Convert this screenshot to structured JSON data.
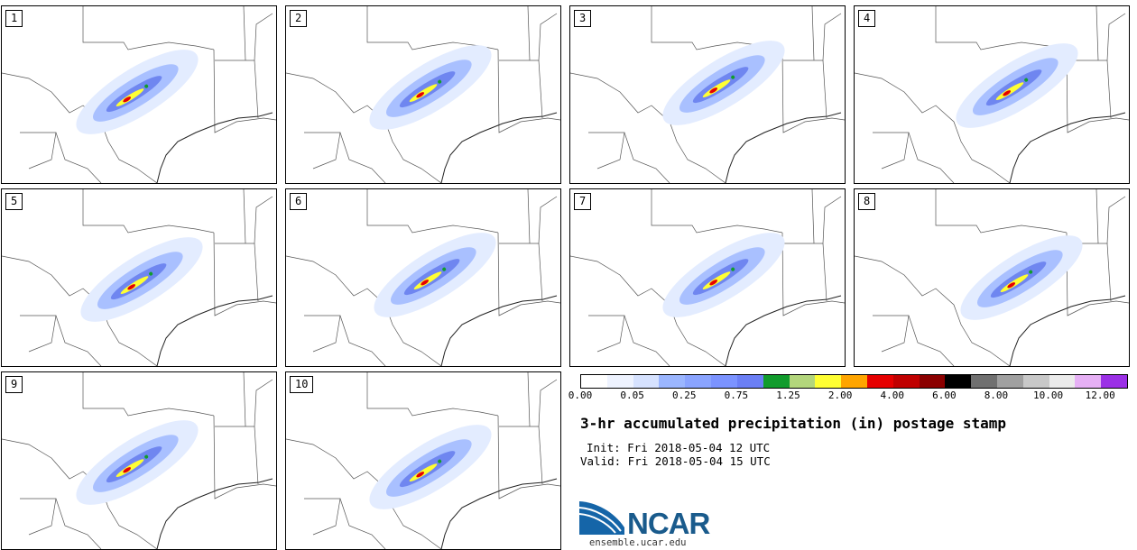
{
  "panels": [
    {
      "label": "1"
    },
    {
      "label": "2"
    },
    {
      "label": "3"
    },
    {
      "label": "4"
    },
    {
      "label": "5"
    },
    {
      "label": "6"
    },
    {
      "label": "7"
    },
    {
      "label": "8"
    },
    {
      "label": "9"
    },
    {
      "label": "10"
    }
  ],
  "colorbar": {
    "colors": [
      "#ffffff",
      "#eef3ff",
      "#d6e2ff",
      "#9bb6ff",
      "#8aa4ff",
      "#7b93ff",
      "#6b7ff5",
      "#119c2d",
      "#b3d67c",
      "#ffff33",
      "#ffa500",
      "#e60000",
      "#c00000",
      "#8b0000",
      "#000000",
      "#707070",
      "#a0a0a0",
      "#c8c8c8",
      "#ebebeb",
      "#e6b0f5",
      "#9b30e6"
    ],
    "tick_labels": [
      "0.00",
      "0.05",
      "0.25",
      "0.75",
      "1.25",
      "2.00",
      "4.00",
      "6.00",
      "8.00",
      "10.00",
      "12.00"
    ]
  },
  "title": "3-hr accumulated precipitation (in) postage stamp",
  "init": "Init: Fri 2018-05-04 12 UTC",
  "valid": "Valid: Fri 2018-05-04 15 UTC",
  "logo": {
    "text": "NCAR",
    "url": "ensemble.ucar.edu"
  }
}
